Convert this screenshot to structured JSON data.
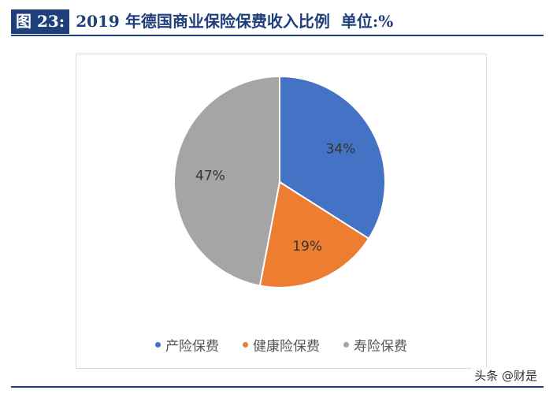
{
  "figure": {
    "label": "图 23:",
    "title": "2019 年德国商业保险保费收入比例",
    "unit": "单位:%"
  },
  "colors": {
    "title": "#1f3f7a",
    "property": "#4472c4",
    "health": "#ed7d31",
    "life": "#a5a5a5"
  },
  "chart_data": {
    "type": "pie",
    "categories": [
      "产险保费",
      "健康险保费",
      "寿险保费"
    ],
    "values": [
      34,
      19,
      47
    ],
    "labels": [
      "34%",
      "19%",
      "47%"
    ],
    "legend": "bottom"
  },
  "watermark": "头条 @财是"
}
